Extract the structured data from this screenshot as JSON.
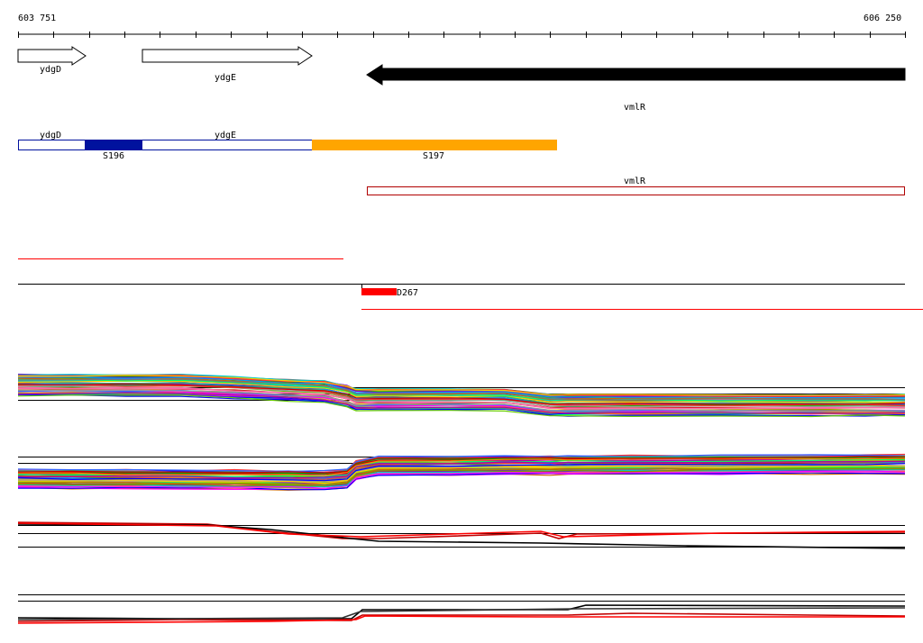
{
  "ruler": {
    "start_label": "603 751",
    "end_label": "606 250"
  },
  "genes": [
    {
      "name": "ydgD",
      "strand": "+",
      "label": "ydgD",
      "style": "outline"
    },
    {
      "name": "ydgE",
      "strand": "+",
      "label": "ydgE",
      "style": "outline"
    },
    {
      "name": "vmlR",
      "strand": "-",
      "label": "vmlR",
      "style": "filled"
    }
  ],
  "annotation_track": {
    "gene_labels": [
      "ydgD",
      "ydgE",
      "vmlR"
    ],
    "segments": [
      {
        "name": "S196",
        "label": "S196",
        "color": "#00129e"
      },
      {
        "name": "S197",
        "label": "S197",
        "color": "#ffa500"
      }
    ],
    "outline_colors": {
      "blue": "#00129e",
      "red": "#b00000"
    }
  },
  "feature_track": {
    "name": "D267",
    "label": "D267",
    "color": "#ff0000"
  },
  "colors": {
    "accent_red": "#ff0000",
    "dark_red": "#c00000",
    "black": "#000000",
    "orange": "#ffa500",
    "navy": "#00129e"
  }
}
